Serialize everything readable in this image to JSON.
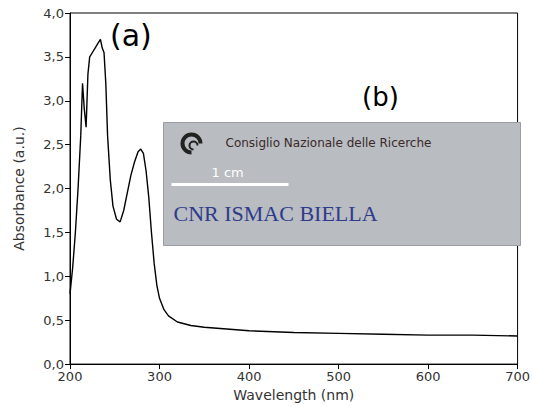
{
  "chart_data": {
    "type": "line",
    "x_label": "Wavelength (nm)",
    "y_label": "Absorbance (a.u.)",
    "color": "#000000",
    "grid": false,
    "x": [
      200,
      203,
      206,
      209,
      212,
      214,
      216,
      218,
      220,
      222,
      225,
      228,
      231,
      234,
      236,
      238,
      240,
      242,
      245,
      248,
      252,
      256,
      260,
      264,
      268,
      272,
      276,
      279,
      282,
      285,
      288,
      291,
      294,
      297,
      300,
      305,
      310,
      320,
      335,
      350,
      375,
      400,
      450,
      500,
      550,
      600,
      650,
      700
    ],
    "values": [
      0.8,
      1.1,
      1.5,
      2.0,
      2.6,
      3.2,
      2.9,
      2.7,
      3.3,
      3.5,
      3.55,
      3.6,
      3.65,
      3.7,
      3.6,
      3.55,
      3.2,
      2.6,
      2.1,
      1.8,
      1.65,
      1.62,
      1.75,
      1.95,
      2.15,
      2.3,
      2.42,
      2.45,
      2.4,
      2.2,
      1.9,
      1.5,
      1.15,
      0.9,
      0.75,
      0.62,
      0.55,
      0.48,
      0.44,
      0.42,
      0.4,
      0.38,
      0.36,
      0.35,
      0.34,
      0.33,
      0.33,
      0.32
    ],
    "xlim": [
      200,
      700
    ],
    "xticks": [
      200,
      300,
      400,
      500,
      600,
      700
    ],
    "ylim": [
      0,
      4
    ],
    "yticks": [
      {
        "value": 0,
        "label": "0,0"
      },
      {
        "value": 0.5,
        "label": "0,5"
      },
      {
        "value": 1,
        "label": "1,0"
      },
      {
        "value": 1.5,
        "label": "1,5"
      },
      {
        "value": 2,
        "label": "2,0"
      },
      {
        "value": 2.5,
        "label": "2,5"
      },
      {
        "value": 3,
        "label": "3,0"
      },
      {
        "value": 3.5,
        "label": "3,5"
      },
      {
        "value": 4,
        "label": "4,0"
      }
    ],
    "panel_labels": [
      "(a)",
      "(b)"
    ],
    "inset": {
      "header": "Consiglio Nazionale delle Ricerche",
      "scale_bar": "1 cm",
      "footer": "CNR ISMAC BIELLA"
    }
  }
}
